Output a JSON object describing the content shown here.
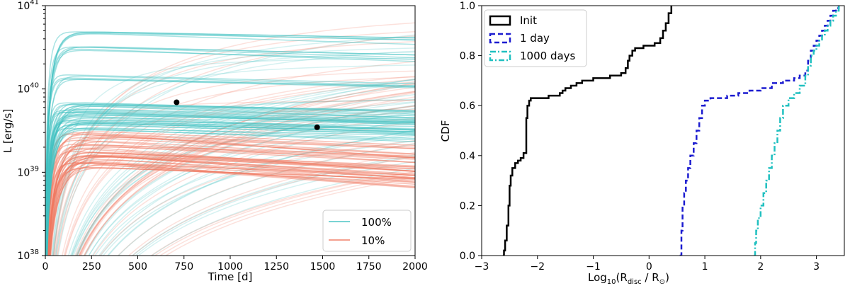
{
  "chart_data": [
    {
      "type": "line",
      "xlabel": "Time [d]",
      "ylabel": "L [erg/s]",
      "xlim": [
        0,
        2000
      ],
      "ylim_log10": [
        38,
        41
      ],
      "x_ticks": [
        0,
        250,
        500,
        750,
        1000,
        1250,
        1500,
        1750,
        2000
      ],
      "x_tick_labels": [
        "0",
        "250",
        "500",
        "750",
        "1000",
        "1250",
        "1500",
        "1750",
        "2000"
      ],
      "y_ticks_log10": [
        38,
        39,
        40,
        41
      ],
      "y_tick_base": "10",
      "y_tick_exponents": [
        "38",
        "39",
        "40",
        "41"
      ],
      "legend_position": "lower-right",
      "series": [
        {
          "name": "100%",
          "color": "#40c0c0",
          "representative_plateaus_log10": [
            39.55,
            39.6,
            39.65,
            39.7,
            39.75,
            39.8,
            39.85,
            40.15,
            40.5,
            40.7
          ]
        },
        {
          "name": "10%",
          "color": "#f07860",
          "representative_plateaus_log10": [
            39.1,
            39.15,
            39.2,
            39.25,
            39.3,
            39.35,
            39.45,
            39.5
          ]
        }
      ],
      "markers": [
        {
          "x": 710,
          "y_log10": 39.84,
          "color": "#000000"
        },
        {
          "x": 1470,
          "y_log10": 39.54,
          "color": "#000000"
        }
      ]
    },
    {
      "type": "line",
      "xlabel_main": "Log",
      "xlabel_sub": "10",
      "xlabel_rest": "(R",
      "xlabel_disc": "disc",
      "xlabel_mid": " / R",
      "xlabel_sun": "⊙",
      "xlabel_end": ")",
      "ylabel": "CDF",
      "xlim": [
        -3,
        3.5
      ],
      "ylim": [
        0,
        1
      ],
      "x_ticks": [
        -3,
        -2,
        -1,
        0,
        1,
        2,
        3
      ],
      "x_tick_labels": [
        "−3",
        "−2",
        "−1",
        "0",
        "1",
        "2",
        "3"
      ],
      "y_ticks": [
        0,
        0.2,
        0.4,
        0.6,
        0.8,
        1.0
      ],
      "y_tick_labels": [
        "0.0",
        "0.2",
        "0.4",
        "0.6",
        "0.8",
        "1.0"
      ],
      "legend_position": "upper-left",
      "series": [
        {
          "name": "Init",
          "color": "#000000",
          "style": "solid",
          "x": [
            -2.62,
            -2.6,
            -2.58,
            -2.55,
            -2.52,
            -2.5,
            -2.48,
            -2.45,
            -2.4,
            -2.35,
            -2.3,
            -2.25,
            -2.2,
            -2.18,
            -2.15,
            -2.12,
            -2.0,
            -1.8,
            -1.6,
            -1.55,
            -1.5,
            -1.45,
            -1.4,
            -1.3,
            -1.2,
            -1.1,
            -1.0,
            -0.9,
            -0.7,
            -0.5,
            -0.42,
            -0.38,
            -0.35,
            -0.3,
            -0.25,
            -0.2,
            -0.1,
            0.0,
            0.1,
            0.2,
            0.25,
            0.3,
            0.35,
            0.4
          ],
          "y": [
            0.0,
            0.02,
            0.06,
            0.12,
            0.2,
            0.28,
            0.32,
            0.35,
            0.37,
            0.38,
            0.39,
            0.41,
            0.55,
            0.6,
            0.62,
            0.63,
            0.63,
            0.64,
            0.65,
            0.66,
            0.67,
            0.67,
            0.68,
            0.69,
            0.7,
            0.7,
            0.71,
            0.71,
            0.72,
            0.73,
            0.75,
            0.78,
            0.8,
            0.82,
            0.83,
            0.83,
            0.84,
            0.84,
            0.85,
            0.87,
            0.9,
            0.93,
            0.97,
            1.0
          ]
        },
        {
          "name": "1 day",
          "color": "#1c1cd0",
          "style": "dashed",
          "x": [
            0.55,
            0.58,
            0.6,
            0.63,
            0.66,
            0.7,
            0.74,
            0.8,
            0.85,
            0.9,
            0.95,
            1.0,
            1.1,
            1.2,
            1.4,
            1.6,
            1.8,
            2.0,
            2.2,
            2.4,
            2.6,
            2.7,
            2.8,
            2.85,
            2.9,
            2.95,
            3.0,
            3.05,
            3.1,
            3.15,
            3.2,
            3.25,
            3.3,
            3.35,
            3.4
          ],
          "y": [
            0.0,
            0.1,
            0.2,
            0.25,
            0.3,
            0.35,
            0.4,
            0.45,
            0.5,
            0.55,
            0.6,
            0.62,
            0.63,
            0.63,
            0.64,
            0.65,
            0.66,
            0.67,
            0.69,
            0.7,
            0.71,
            0.72,
            0.74,
            0.78,
            0.82,
            0.84,
            0.86,
            0.88,
            0.9,
            0.92,
            0.94,
            0.96,
            0.98,
            0.99,
            1.0
          ]
        },
        {
          "name": "1000 days",
          "color": "#20c0c0",
          "style": "dashdot",
          "x": [
            1.88,
            1.9,
            1.92,
            1.95,
            2.0,
            2.05,
            2.1,
            2.15,
            2.2,
            2.25,
            2.3,
            2.35,
            2.4,
            2.5,
            2.6,
            2.7,
            2.8,
            2.85,
            2.9,
            2.95,
            3.0,
            3.05,
            3.1,
            3.15,
            3.2,
            3.25,
            3.3,
            3.35,
            3.4
          ],
          "y": [
            0.0,
            0.05,
            0.1,
            0.15,
            0.2,
            0.25,
            0.3,
            0.35,
            0.4,
            0.45,
            0.5,
            0.55,
            0.6,
            0.63,
            0.65,
            0.68,
            0.72,
            0.76,
            0.8,
            0.82,
            0.84,
            0.86,
            0.88,
            0.9,
            0.92,
            0.94,
            0.96,
            0.98,
            1.0
          ]
        }
      ]
    }
  ]
}
